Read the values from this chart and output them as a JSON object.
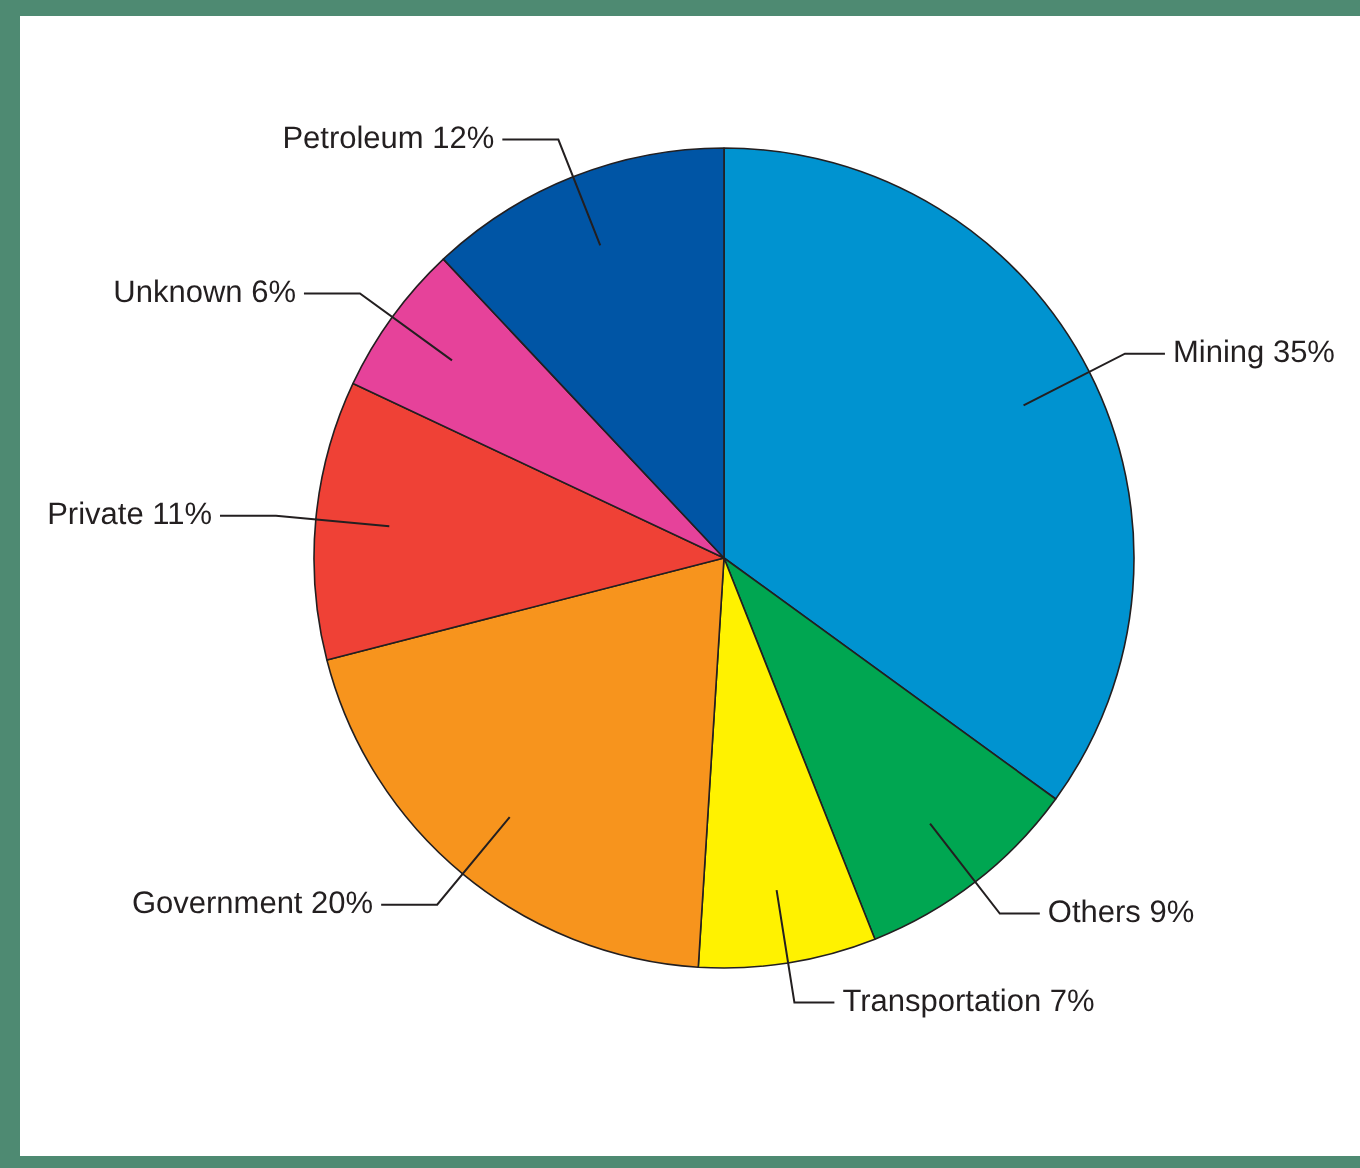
{
  "chart_data": {
    "type": "pie",
    "categories": [
      "Mining",
      "Others",
      "Transportation",
      "Government",
      "Private",
      "Unknown",
      "Petroleum"
    ],
    "values": [
      35,
      9,
      7,
      20,
      11,
      6,
      12
    ],
    "value_labels": [
      "35%",
      "9%",
      "7%",
      "20%",
      "11%",
      "6%",
      "12%"
    ],
    "colors": [
      "#0093d0",
      "#00a651",
      "#fff200",
      "#f7941d",
      "#ef4136",
      "#e6429a",
      "#0055a5"
    ],
    "legend": false
  }
}
